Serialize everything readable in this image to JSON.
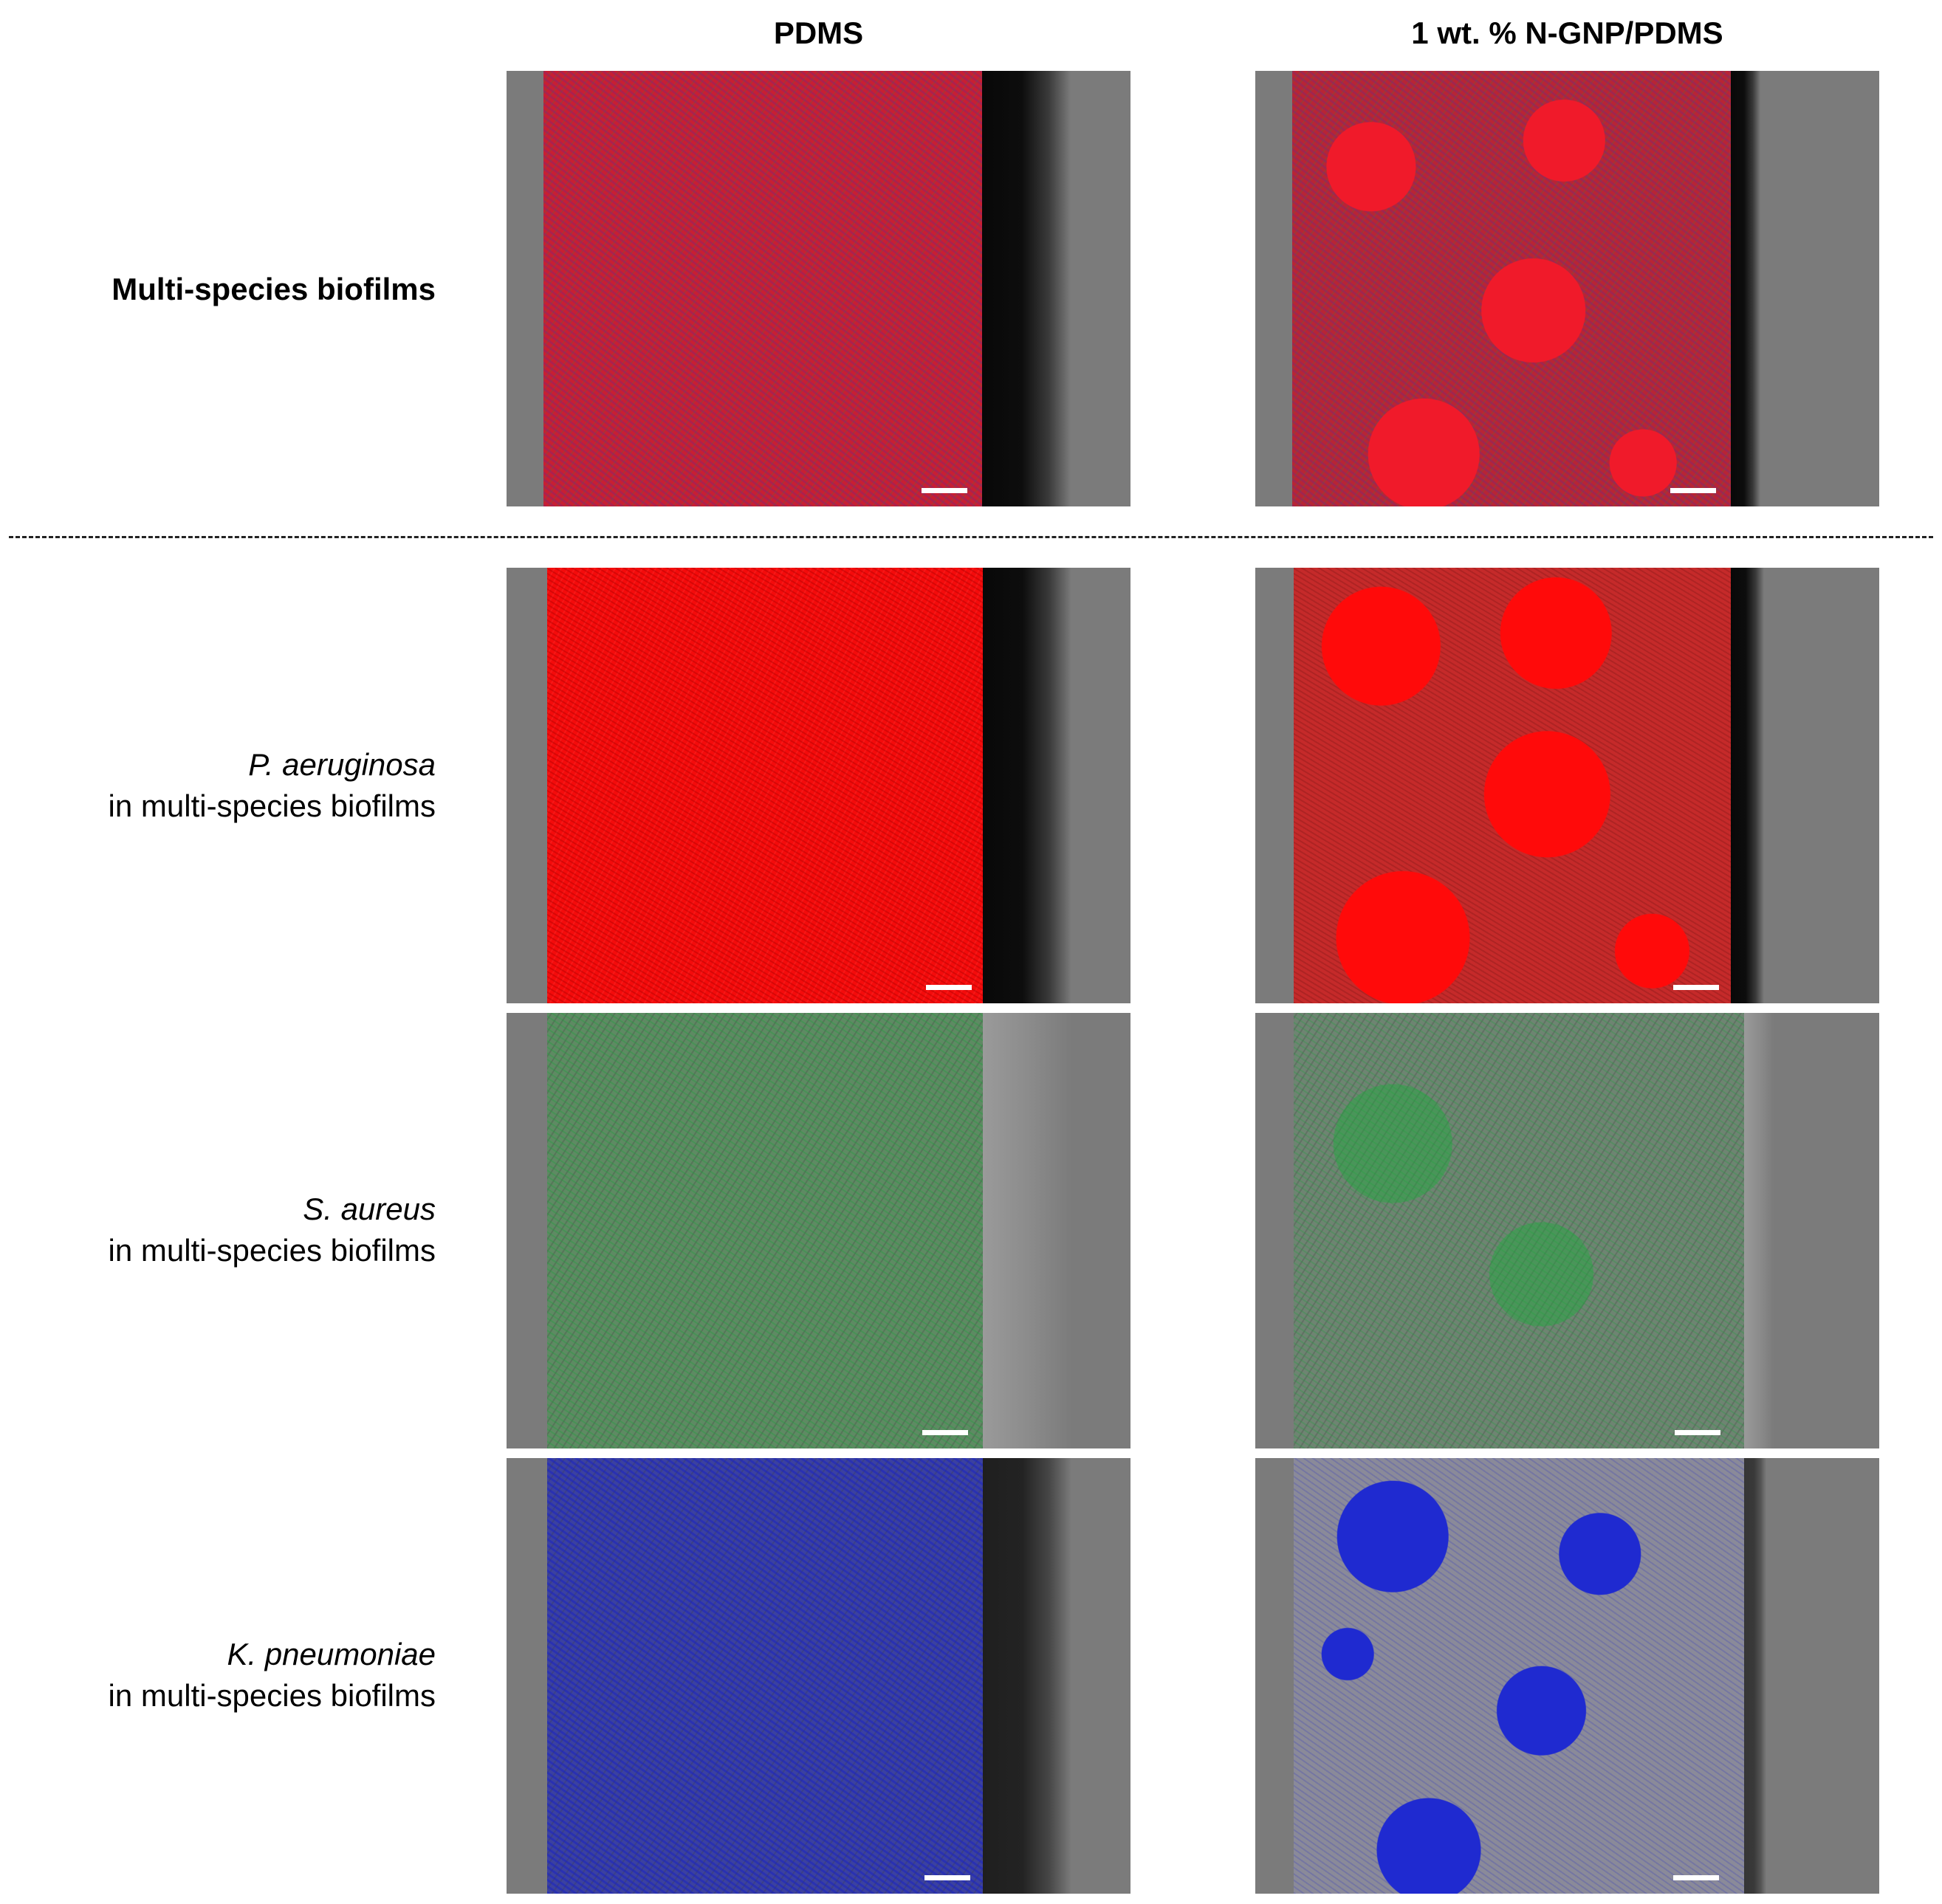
{
  "columns": {
    "left_header": "PDMS",
    "right_header": "1 wt. % N-GNP/PDMS"
  },
  "rows": [
    {
      "title": "Multi-species biofilms",
      "species": "",
      "subtitle": ""
    },
    {
      "title": "",
      "species": "P. aeruginosa",
      "subtitle": "in multi-species biofilms"
    },
    {
      "title": "",
      "species": "S. aureus",
      "subtitle": "in multi-species biofilms"
    },
    {
      "title": "",
      "species": "K. pneumoniae",
      "subtitle": "in multi-species biofilms"
    }
  ],
  "colors": {
    "panel_background": "#7b7b7b",
    "multi_species": "#c81f32",
    "p_aeruginosa": "#f40b0b",
    "s_aureus": "#5e8a63",
    "k_pneumoniae": "#3b41a0",
    "scale_bar": "#ffffff"
  }
}
